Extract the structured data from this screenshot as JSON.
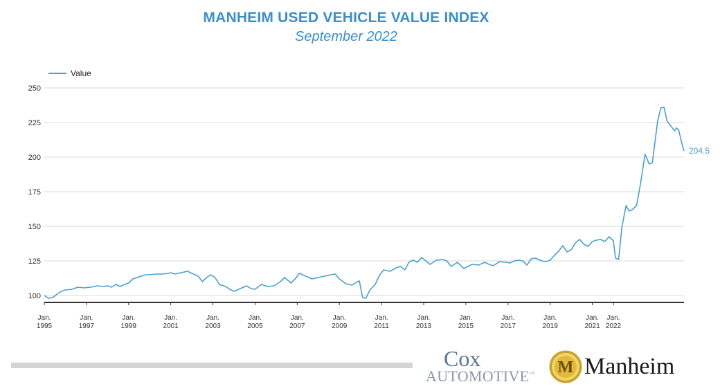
{
  "header": {
    "title": "MANHEIM USED VEHICLE VALUE INDEX",
    "subtitle": "September 2022"
  },
  "colors": {
    "title": "#3a8fc9",
    "line": "#4a9fcf",
    "grid": "#d9d9d9",
    "axis": "#333333"
  },
  "chart_data": {
    "type": "line",
    "legend": "top-left",
    "grid": true,
    "series": [
      {
        "name": "Value",
        "end_label": "204.5",
        "points": [
          [
            1995.0,
            100
          ],
          [
            1995.2,
            98
          ],
          [
            1995.4,
            98.5
          ],
          [
            1995.6,
            101
          ],
          [
            1995.8,
            103
          ],
          [
            1996.0,
            104
          ],
          [
            1996.3,
            104.5
          ],
          [
            1996.6,
            106
          ],
          [
            1996.9,
            105.5
          ],
          [
            1997.2,
            106
          ],
          [
            1997.5,
            107
          ],
          [
            1997.8,
            106.5
          ],
          [
            1998.0,
            107
          ],
          [
            1998.2,
            106
          ],
          [
            1998.4,
            108
          ],
          [
            1998.6,
            106.5
          ],
          [
            1998.8,
            108
          ],
          [
            1999.0,
            109
          ],
          [
            1999.2,
            112
          ],
          [
            1999.5,
            113.5
          ],
          [
            1999.8,
            115
          ],
          [
            2000.0,
            115
          ],
          [
            2000.3,
            115.5
          ],
          [
            2000.6,
            115.5
          ],
          [
            2000.9,
            116
          ],
          [
            2001.0,
            116.5
          ],
          [
            2001.2,
            115.5
          ],
          [
            2001.5,
            116.5
          ],
          [
            2001.8,
            117.5
          ],
          [
            2002.0,
            116
          ],
          [
            2002.3,
            114
          ],
          [
            2002.5,
            110
          ],
          [
            2002.7,
            113
          ],
          [
            2002.9,
            115
          ],
          [
            2003.1,
            113
          ],
          [
            2003.3,
            108
          ],
          [
            2003.6,
            106.5
          ],
          [
            2003.8,
            104.5
          ],
          [
            2004.0,
            103
          ],
          [
            2004.3,
            105
          ],
          [
            2004.6,
            107
          ],
          [
            2004.8,
            105
          ],
          [
            2005.0,
            104.5
          ],
          [
            2005.3,
            108
          ],
          [
            2005.6,
            106.5
          ],
          [
            2005.9,
            107
          ],
          [
            2006.2,
            110
          ],
          [
            2006.4,
            113
          ],
          [
            2006.7,
            109
          ],
          [
            2006.9,
            112
          ],
          [
            2007.1,
            116
          ],
          [
            2007.4,
            114
          ],
          [
            2007.7,
            112
          ],
          [
            2008.0,
            113
          ],
          [
            2008.3,
            114
          ],
          [
            2008.6,
            115
          ],
          [
            2008.8,
            115.5
          ],
          [
            2009.0,
            112
          ],
          [
            2009.3,
            108.5
          ],
          [
            2009.6,
            107.5
          ],
          [
            2009.8,
            109.5
          ],
          [
            2009.95,
            110.5
          ],
          [
            2010.1,
            98.5
          ],
          [
            2010.25,
            98
          ],
          [
            2010.45,
            104
          ],
          [
            2010.7,
            108
          ],
          [
            2010.9,
            114.5
          ],
          [
            2011.1,
            118.5
          ],
          [
            2011.4,
            117.5
          ],
          [
            2011.7,
            120
          ],
          [
            2011.9,
            121
          ],
          [
            2012.1,
            118.5
          ],
          [
            2012.3,
            124
          ],
          [
            2012.5,
            125.5
          ],
          [
            2012.7,
            124
          ],
          [
            2012.9,
            127.5
          ],
          [
            2013.1,
            125
          ],
          [
            2013.3,
            122.5
          ],
          [
            2013.6,
            125.5
          ],
          [
            2013.9,
            126
          ],
          [
            2014.1,
            125
          ],
          [
            2014.3,
            121
          ],
          [
            2014.6,
            124
          ],
          [
            2014.9,
            119.5
          ],
          [
            2015.1,
            121
          ],
          [
            2015.3,
            122.5
          ],
          [
            2015.6,
            122
          ],
          [
            2015.9,
            124
          ],
          [
            2016.1,
            122.5
          ],
          [
            2016.3,
            121.5
          ],
          [
            2016.6,
            124.5
          ],
          [
            2016.9,
            124
          ],
          [
            2017.1,
            123.5
          ],
          [
            2017.3,
            125
          ],
          [
            2017.5,
            125.5
          ],
          [
            2017.7,
            125
          ],
          [
            2017.9,
            122
          ],
          [
            2018.1,
            126.5
          ],
          [
            2018.3,
            127
          ],
          [
            2018.6,
            125
          ],
          [
            2018.8,
            124.5
          ],
          [
            2019.0,
            125.5
          ],
          [
            2019.2,
            129
          ],
          [
            2019.4,
            132
          ],
          [
            2019.6,
            136
          ],
          [
            2019.8,
            131.5
          ],
          [
            2020.0,
            133
          ],
          [
            2020.2,
            138
          ],
          [
            2020.4,
            140.5
          ],
          [
            2020.6,
            137
          ],
          [
            2020.8,
            135.5
          ],
          [
            2021.0,
            139
          ],
          [
            2021.2,
            140
          ],
          [
            2021.4,
            140.5
          ],
          [
            2021.6,
            139
          ],
          [
            2021.8,
            142.5
          ],
          [
            2022.0,
            139.5
          ],
          [
            2022.1,
            127
          ],
          [
            2022.25,
            126
          ],
          [
            2022.4,
            149
          ],
          [
            2022.6,
            165
          ],
          [
            2022.75,
            161
          ],
          [
            2022.9,
            162
          ],
          [
            2023.1,
            165
          ],
          [
            2023.3,
            182
          ],
          [
            2023.5,
            202
          ],
          [
            2023.7,
            195
          ],
          [
            2023.85,
            196
          ],
          [
            2024.1,
            226
          ],
          [
            2024.25,
            235.5
          ],
          [
            2024.4,
            236
          ],
          [
            2024.55,
            226
          ],
          [
            2024.75,
            222
          ],
          [
            2024.9,
            219
          ],
          [
            2025.0,
            221
          ],
          [
            2025.1,
            219.5
          ],
          [
            2025.2,
            213
          ],
          [
            2025.3,
            207
          ],
          [
            2025.35,
            204.5
          ]
        ]
      }
    ],
    "xticks": [
      {
        "x": 1995.0,
        "l1": "Jan.",
        "l2": "1995"
      },
      {
        "x": 1997.0,
        "l1": "Jan.",
        "l2": "1997"
      },
      {
        "x": 1999.0,
        "l1": "Jan.",
        "l2": "1999"
      },
      {
        "x": 2001.0,
        "l1": "Jan.",
        "l2": "2001"
      },
      {
        "x": 2003.0,
        "l1": "Jan.",
        "l2": "2003"
      },
      {
        "x": 2005.0,
        "l1": "Jan.",
        "l2": "2005"
      },
      {
        "x": 2007.0,
        "l1": "Jan.",
        "l2": "2007"
      },
      {
        "x": 2009.0,
        "l1": "Jan.",
        "l2": "2009"
      },
      {
        "x": 2011.0,
        "l1": "Jan.",
        "l2": "2011"
      },
      {
        "x": 2013.0,
        "l1": "Jan.",
        "l2": "2013"
      },
      {
        "x": 2015.0,
        "l1": "Jan.",
        "l2": "2015"
      },
      {
        "x": 2017.0,
        "l1": "Jan.",
        "l2": "2017"
      },
      {
        "x": 2019.0,
        "l1": "Jan.",
        "l2": "2019"
      },
      {
        "x": 2021.0,
        "l1": "Jan.",
        "l2": "2021"
      },
      {
        "x": 2022.0,
        "l1": "Jan.",
        "l2": "2022"
      }
    ],
    "yticks": [
      100,
      125,
      150,
      175,
      200,
      225,
      250
    ],
    "ylim": [
      95,
      250
    ]
  },
  "logos": {
    "cox_top": "Cox",
    "cox_bottom": "AUTOMOTIVE",
    "cox_tm": "™",
    "manheim_letter": "M",
    "manheim_word": "Manheim"
  }
}
